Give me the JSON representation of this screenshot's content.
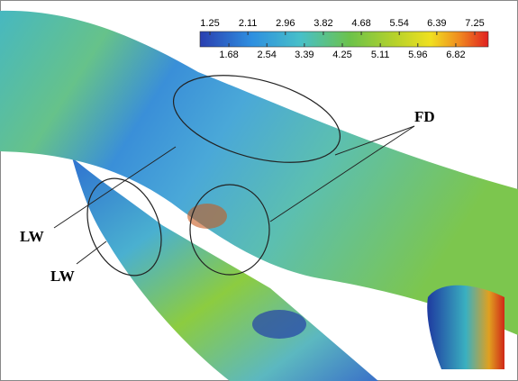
{
  "colorbar": {
    "top_ticks": [
      1.25,
      2.11,
      2.96,
      3.82,
      4.68,
      5.54,
      6.39,
      7.25
    ],
    "bottom_ticks": [
      1.68,
      2.54,
      3.39,
      4.25,
      5.11,
      5.96,
      6.82
    ]
  },
  "annotations": {
    "fd": "FD",
    "lw_upper": "LW",
    "lw_lower": "LW"
  }
}
